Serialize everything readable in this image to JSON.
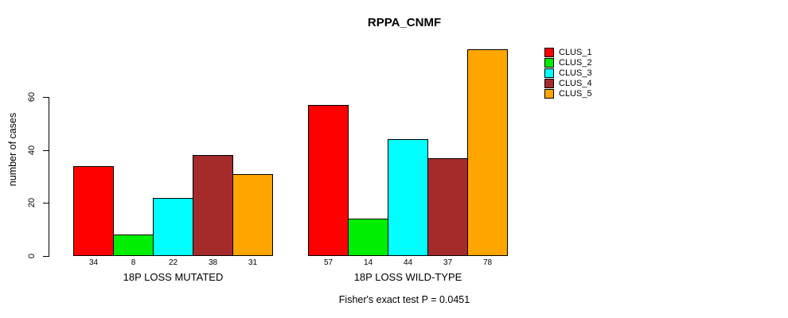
{
  "title": "RPPA_CNMF",
  "footer": "Fisher's exact test P = 0.0451",
  "chart_data": {
    "type": "bar",
    "title": "RPPA_CNMF",
    "xlabel": "",
    "ylabel": "number of cases",
    "ylim": [
      0,
      78
    ],
    "y_ticks": [
      0,
      20,
      40,
      60
    ],
    "grid": false,
    "legend_position": "right",
    "groups": [
      "18P LOSS MUTATED",
      "18P LOSS WILD-TYPE"
    ],
    "series": [
      {
        "name": "CLUS_1",
        "color": "#FF0000",
        "values": [
          34,
          57
        ]
      },
      {
        "name": "CLUS_2",
        "color": "#00EE00",
        "values": [
          8,
          14
        ]
      },
      {
        "name": "CLUS_3",
        "color": "#00FFFF",
        "values": [
          22,
          44
        ]
      },
      {
        "name": "CLUS_4",
        "color": "#A52A2A",
        "values": [
          38,
          37
        ]
      },
      {
        "name": "CLUS_5",
        "color": "#FFA500",
        "values": [
          31,
          78
        ]
      }
    ],
    "annotation": "Fisher's exact test P = 0.0451"
  }
}
